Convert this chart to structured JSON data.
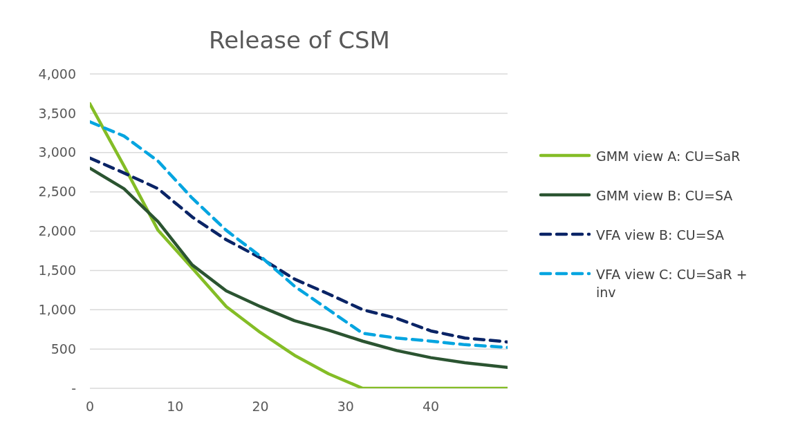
{
  "chart_data": {
    "type": "line",
    "title": "Release of CSM",
    "x": [
      0,
      4,
      8,
      12,
      16,
      20,
      24,
      28,
      32,
      36,
      40,
      44,
      49
    ],
    "series": [
      {
        "name": "GMM view A: CU=SaR",
        "color": "#84bd26",
        "line_style": "solid",
        "values": [
          3620,
          2830,
          2010,
          1530,
          1040,
          710,
          420,
          185,
          0,
          0,
          0,
          0,
          0
        ]
      },
      {
        "name": "GMM view B: CU=SA",
        "color": "#2b5431",
        "line_style": "solid",
        "values": [
          2800,
          2540,
          2120,
          1570,
          1240,
          1040,
          860,
          740,
          600,
          480,
          390,
          325,
          265
        ]
      },
      {
        "name": "VFA view B: CU=SA",
        "color": "#0a2466",
        "line_style": "dashed",
        "values": [
          2930,
          2740,
          2540,
          2180,
          1890,
          1660,
          1390,
          1200,
          1000,
          890,
          730,
          640,
          590
        ]
      },
      {
        "name": "VFA view C: CU=SaR + inv",
        "color": "#05a5e0",
        "line_style": "dashed",
        "values": [
          3390,
          3210,
          2890,
          2420,
          2010,
          1680,
          1300,
          1000,
          700,
          640,
          600,
          555,
          520
        ]
      }
    ],
    "xlim": [
      0,
      49
    ],
    "xticks": [
      0,
      10,
      20,
      30,
      40
    ],
    "ylim": [
      0,
      4000
    ],
    "yticks": [
      {
        "value": 0,
        "label": "-"
      },
      {
        "value": 500,
        "label": "500"
      },
      {
        "value": 1000,
        "label": "1,000"
      },
      {
        "value": 1500,
        "label": "1,500"
      },
      {
        "value": 2000,
        "label": "2,000"
      },
      {
        "value": 2500,
        "label": "2,500"
      },
      {
        "value": 3000,
        "label": "3,000"
      },
      {
        "value": 3500,
        "label": "3,500"
      },
      {
        "value": 4000,
        "label": "4,000"
      }
    ],
    "grid": "y",
    "legend": "right"
  }
}
